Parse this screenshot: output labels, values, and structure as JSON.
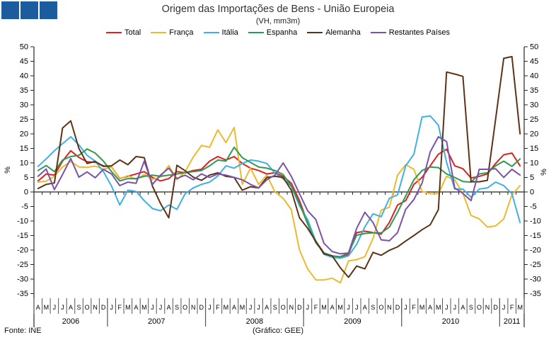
{
  "header": {
    "title": "Origem das Importações de Bens - União Europeia",
    "subtitle": "(VH, mm3m)"
  },
  "footer": {
    "source": "Fonte: INE",
    "credit": "(Gráfico: GEE)"
  },
  "colors": {
    "logo_blue": "#1A5C9E",
    "axis": "#262626"
  },
  "chart_data": {
    "type": "line",
    "title": "Origem das Importações de Bens - União Europeia",
    "subtitle": "(VH, mm3m)",
    "ylabel_left": "%",
    "ylabel_right": "%",
    "ylim": [
      -35,
      50
    ],
    "ytick_step": 5,
    "grid": false,
    "legend_position": "top",
    "month_labels": [
      "A",
      "M",
      "J",
      "J",
      "A",
      "S",
      "O",
      "N",
      "D",
      "J",
      "F",
      "M",
      "A",
      "M",
      "J",
      "J",
      "A",
      "S",
      "O",
      "N",
      "D",
      "J",
      "F",
      "M",
      "A",
      "M",
      "J",
      "J",
      "A",
      "S",
      "O",
      "N",
      "D",
      "J",
      "F",
      "M",
      "A",
      "M",
      "J",
      "J",
      "A",
      "S",
      "O",
      "N",
      "D",
      "J",
      "F",
      "M",
      "A",
      "M",
      "J",
      "J",
      "A",
      "S",
      "O",
      "N",
      "D",
      "J",
      "F",
      "M"
    ],
    "year_groups": [
      {
        "label": "2006",
        "months": 9
      },
      {
        "label": "2007",
        "months": 12
      },
      {
        "label": "2008",
        "months": 12
      },
      {
        "label": "2009",
        "months": 12
      },
      {
        "label": "2010",
        "months": 12
      },
      {
        "label": "2011",
        "months": 3
      }
    ],
    "series": [
      {
        "name": "Total",
        "color": "#E02020",
        "values": [
          3.8,
          6.2,
          5.8,
          10.6,
          14.2,
          11.9,
          10.4,
          10.2,
          9.0,
          8.6,
          4.6,
          5.4,
          6.2,
          7.0,
          5.0,
          3.8,
          4.6,
          7.0,
          6.6,
          7.4,
          7.8,
          10.6,
          12.2,
          11.0,
          12.2,
          9.8,
          8.2,
          7.4,
          6.2,
          6.6,
          5.4,
          3.0,
          -3.0,
          -10.5,
          -17.0,
          -21.0,
          -22.3,
          -22.5,
          -21.5,
          -14.0,
          -13.5,
          -14.0,
          -14.5,
          -10.5,
          -4.5,
          -3.0,
          2.6,
          5.0,
          9.0,
          13.0,
          14.7,
          9.0,
          8.0,
          4.8,
          5.4,
          6.2,
          9.8,
          12.8,
          13.4,
          9.0
        ]
      },
      {
        "name": "França",
        "color": "#EDB92E",
        "values": [
          3.4,
          3.7,
          5.4,
          8.6,
          10.5,
          8.6,
          8.5,
          8.9,
          7.8,
          8.6,
          4.5,
          5.6,
          4.3,
          6.0,
          4.3,
          5.2,
          9.1,
          4.2,
          7.0,
          12.0,
          16.0,
          15.4,
          21.4,
          17.0,
          22.2,
          2.6,
          8.2,
          2.6,
          5.8,
          0.0,
          -2.2,
          -6.1,
          -20.0,
          -26.5,
          -30.3,
          -30.3,
          -29.7,
          -31.3,
          -23.7,
          -23.3,
          -22.3,
          -16.0,
          -6.2,
          -5.3,
          5.8,
          9.4,
          7.8,
          0.2,
          -0.6,
          -0.6,
          5.4,
          4.2,
          -0.5,
          -8.1,
          -9.3,
          -12.1,
          -11.7,
          -9.3,
          -1.0,
          2.2
        ]
      },
      {
        "name": "Itália",
        "color": "#3FB0E4",
        "values": [
          8.8,
          11.4,
          14.2,
          16.6,
          19.0,
          16.2,
          12.6,
          10.6,
          7.0,
          2.0,
          -4.5,
          0.6,
          0.2,
          -3.0,
          -5.7,
          -6.5,
          -4.5,
          -6.0,
          -0.6,
          1.4,
          2.6,
          3.4,
          5.5,
          9.0,
          8.2,
          9.8,
          11.0,
          10.6,
          9.8,
          6.5,
          4.5,
          2.0,
          -4.8,
          -9.5,
          -17.0,
          -21.5,
          -22.5,
          -22.8,
          -22.0,
          -18.0,
          -12.0,
          -7.5,
          -8.5,
          -2.2,
          -1.0,
          9.0,
          13.0,
          25.8,
          26.2,
          23.0,
          10.2,
          1.0,
          1.0,
          -1.8,
          1.0,
          1.4,
          3.4,
          2.2,
          -0.6,
          -10.5
        ]
      },
      {
        "name": "Espanha",
        "color": "#2E9B53",
        "values": [
          7.4,
          9.1,
          7.0,
          11.0,
          12.2,
          12.6,
          14.8,
          13.4,
          10.6,
          7.0,
          3.8,
          4.6,
          4.6,
          5.4,
          5.8,
          5.4,
          5.8,
          6.2,
          6.6,
          7.0,
          7.4,
          9.0,
          11.0,
          10.6,
          15.4,
          11.8,
          10.2,
          8.6,
          8.2,
          7.4,
          6.0,
          2.0,
          -4.0,
          -11.0,
          -17.5,
          -21.0,
          -22.0,
          -22.3,
          -21.0,
          -14.9,
          -14.3,
          -14.1,
          -14.1,
          -12.1,
          -7.0,
          -1.4,
          4.2,
          7.4,
          8.6,
          8.4,
          6.2,
          5.0,
          3.6,
          3.4,
          6.2,
          6.6,
          9.0,
          10.6,
          8.8,
          11.4
        ]
      },
      {
        "name": "Alemanha",
        "color": "#5C3317",
        "values": [
          1.2,
          2.6,
          3.1,
          22.0,
          24.5,
          15.0,
          9.8,
          10.5,
          8.8,
          9.0,
          11.0,
          9.4,
          12.2,
          11.8,
          2.0,
          -4.0,
          -8.9,
          9.2,
          7.3,
          5.1,
          4.0,
          5.8,
          6.6,
          5.4,
          5.0,
          0.6,
          1.8,
          1.4,
          5.0,
          5.4,
          5.0,
          0.6,
          -8.9,
          -12.5,
          -17.0,
          -21.3,
          -22.0,
          -26.1,
          -29.4,
          -25.5,
          -26.5,
          -20.8,
          -21.8,
          -20.1,
          -18.9,
          -16.9,
          -15.0,
          -13.0,
          -11.3,
          -6.1,
          41.3,
          40.6,
          39.8,
          3.5,
          3.5,
          4.0,
          25.0,
          46.0,
          46.6,
          20.0
        ]
      },
      {
        "name": "Restantes Países",
        "color": "#7B52A8",
        "values": [
          5.4,
          7.9,
          0.8,
          6.0,
          11.5,
          5.1,
          6.9,
          4.9,
          7.8,
          6.2,
          2.2,
          3.4,
          3.0,
          10.6,
          2.6,
          5.8,
          8.2,
          4.6,
          5.8,
          4.2,
          6.2,
          5.0,
          6.2,
          5.8,
          5.0,
          4.2,
          2.6,
          1.4,
          4.2,
          5.8,
          10.0,
          5.4,
          -0.6,
          -6.5,
          -9.5,
          -17.7,
          -20.5,
          -21.3,
          -21.0,
          -12.5,
          -7.0,
          -10.5,
          -16.5,
          -16.8,
          -14.0,
          -6.0,
          -2.6,
          3.0,
          13.8,
          19.0,
          17.4,
          1.4,
          -0.5,
          -3.0,
          7.8,
          7.8,
          8.0,
          5.0,
          7.8,
          5.8
        ]
      }
    ]
  }
}
